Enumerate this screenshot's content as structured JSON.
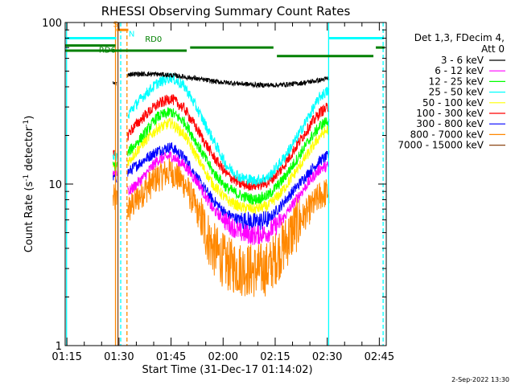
{
  "chart_data": {
    "type": "line",
    "title": "RHESSI Observing Summary Count Rates",
    "xlabel": "Start Time (31-Dec-17 01:14:02)",
    "ylabel": "Count Rate (s",
    "ylabel_sup": "-1",
    "ylabel_tail": " detector",
    "ylabel_tail_sup": "-1",
    "ylabel_close": ")",
    "y_scale": "log",
    "ylim": [
      1,
      100
    ],
    "y_ticks": [
      {
        "value": 1,
        "label": "1"
      },
      {
        "value": 10,
        "label": "10"
      },
      {
        "value": 100,
        "label": "100"
      }
    ],
    "xlim_minutes": [
      74.5,
      167
    ],
    "x_ticks": [
      {
        "value": 75,
        "label": "01:15"
      },
      {
        "value": 90,
        "label": "01:30"
      },
      {
        "value": 105,
        "label": "01:45"
      },
      {
        "value": 120,
        "label": "02:00"
      },
      {
        "value": 135,
        "label": "02:15"
      },
      {
        "value": 150,
        "label": "02:30"
      },
      {
        "value": 165,
        "label": "02:45"
      }
    ],
    "legend_header": [
      "Det 1,3, FDecim 4,",
      "Att 0"
    ],
    "legend_position": "right",
    "series": [
      {
        "name": "3 - 6 keV",
        "color": "#000000",
        "x": [
          88.3,
          91,
          93,
          100,
          106,
          112,
          118,
          124,
          130,
          136,
          142,
          148,
          150.5
        ],
        "y": [
          42,
          42,
          48,
          48,
          47,
          45,
          43,
          42,
          41,
          41,
          42,
          44,
          45
        ]
      },
      {
        "name": "6 - 12 keV",
        "color": "#ff00ff",
        "x": [
          88.3,
          90.5,
          93,
          97,
          101,
          105,
          109,
          113,
          117,
          121,
          125,
          129,
          133,
          137,
          141,
          145,
          148,
          150.5
        ],
        "y": [
          12,
          12,
          9,
          11,
          14,
          15,
          13,
          10,
          7,
          5.8,
          5,
          4.8,
          5,
          6,
          8,
          10.5,
          12.5,
          13
        ]
      },
      {
        "name": "12 - 25 keV",
        "color": "#00ff00",
        "x": [
          88.3,
          90.5,
          93,
          97,
          101,
          105,
          109,
          113,
          117,
          121,
          125,
          129,
          133,
          137,
          141,
          145,
          148,
          150.5
        ],
        "y": [
          13,
          13,
          16,
          20,
          26,
          28,
          24,
          17,
          12,
          9.5,
          8.5,
          8,
          8.5,
          10.5,
          14,
          19,
          23,
          25
        ]
      },
      {
        "name": "25 - 50 keV",
        "color": "#00ffff",
        "x": [
          88.3,
          90.5,
          93,
          97,
          101,
          105,
          109,
          113,
          117,
          121,
          125,
          129,
          133,
          137,
          141,
          145,
          148,
          150.5
        ],
        "y": [
          15,
          15,
          28,
          35,
          42,
          46,
          40,
          28,
          19,
          13,
          11,
          10.5,
          11,
          14,
          19,
          27,
          35,
          38
        ]
      },
      {
        "name": "50 - 100 keV",
        "color": "#ffff00",
        "x": [
          88.3,
          90.5,
          93,
          97,
          101,
          105,
          109,
          113,
          117,
          121,
          125,
          129,
          133,
          137,
          141,
          145,
          148,
          150.5
        ],
        "y": [
          13,
          13,
          14,
          18,
          22,
          24,
          20,
          14,
          10,
          8,
          7.2,
          7,
          7.3,
          9,
          12,
          16,
          20,
          22
        ]
      },
      {
        "name": "100 - 300 keV",
        "color": "#ff0000",
        "x": [
          88.3,
          90.5,
          93,
          97,
          101,
          105,
          109,
          113,
          117,
          121,
          125,
          129,
          133,
          137,
          141,
          145,
          148,
          150.5
        ],
        "y": [
          15,
          15,
          21,
          26,
          31,
          34,
          29,
          21,
          15,
          11.5,
          10,
          9.8,
          10.2,
          12.5,
          17,
          23,
          28,
          30
        ]
      },
      {
        "name": "300 - 800 keV",
        "color": "#0000ff",
        "x": [
          88.3,
          90.5,
          93,
          97,
          101,
          105,
          109,
          113,
          117,
          121,
          125,
          129,
          133,
          137,
          141,
          145,
          148,
          150.5
        ],
        "y": [
          11,
          11,
          12,
          14,
          16,
          17,
          14.5,
          10.5,
          8,
          6.5,
          6,
          5.8,
          6,
          7.5,
          9.5,
          12,
          14,
          15
        ]
      },
      {
        "name": "800 - 7000 keV",
        "color": "#ff8800",
        "x": [
          88.3,
          90.5,
          93,
          97,
          101,
          105,
          109,
          113,
          117,
          121,
          125,
          129,
          133,
          137,
          141,
          145,
          148,
          150.5
        ],
        "y": [
          8,
          8,
          7,
          9,
          11,
          12,
          10,
          6.5,
          4,
          3.2,
          3,
          2.9,
          3,
          4,
          5.5,
          7,
          8.5,
          9
        ]
      },
      {
        "name": "7000 - 15000 keV",
        "color": "#8b4513",
        "x": [],
        "y": []
      }
    ],
    "annotations": {
      "attenuator_flag": {
        "label": "S",
        "color": "#ff8800"
      },
      "night_flag": {
        "label": "N",
        "color": "#00ffff"
      },
      "rd_labels": [
        {
          "label": "RD0",
          "color": "#008000"
        },
        {
          "label": "RD6",
          "color": "#008000"
        }
      ],
      "night_bars": [
        {
          "start": 74.5,
          "end": 89.2,
          "y": 80
        },
        {
          "start": 150.3,
          "end": 166.3,
          "y": 80
        }
      ],
      "orange_bar": {
        "start": 89.3,
        "end": 92.7,
        "y": 90
      },
      "rd_bars": [
        {
          "start": 74.5,
          "end": 109.5,
          "y": 67,
          "color": "#008000"
        },
        {
          "start": 110.5,
          "end": 134.5,
          "y": 70,
          "color": "#008000"
        },
        {
          "start": 135.5,
          "end": 163.3,
          "y": 62,
          "color": "#008000"
        },
        {
          "start": 164.0,
          "end": 166.5,
          "y": 70,
          "color": "#008000"
        },
        {
          "start": 74.5,
          "end": 89.0,
          "y": 72,
          "color": "#008000"
        }
      ],
      "vlines": [
        {
          "x": 89.0,
          "color": "#ff8800",
          "style": "solid"
        },
        {
          "x": 89.7,
          "color": "#8b4513",
          "style": "solid"
        },
        {
          "x": 90.5,
          "color": "#00ffff",
          "style": "dashed"
        },
        {
          "x": 92.3,
          "color": "#ff8800",
          "style": "dashed"
        },
        {
          "x": 150.4,
          "color": "#00ffff",
          "style": "solid"
        },
        {
          "x": 166.1,
          "color": "#00ffff",
          "style": "dashed"
        },
        {
          "x": 74.9,
          "color": "#00ffff",
          "style": "solid"
        }
      ]
    }
  },
  "footer_timestamp": "2-Sep-2022 13:30"
}
